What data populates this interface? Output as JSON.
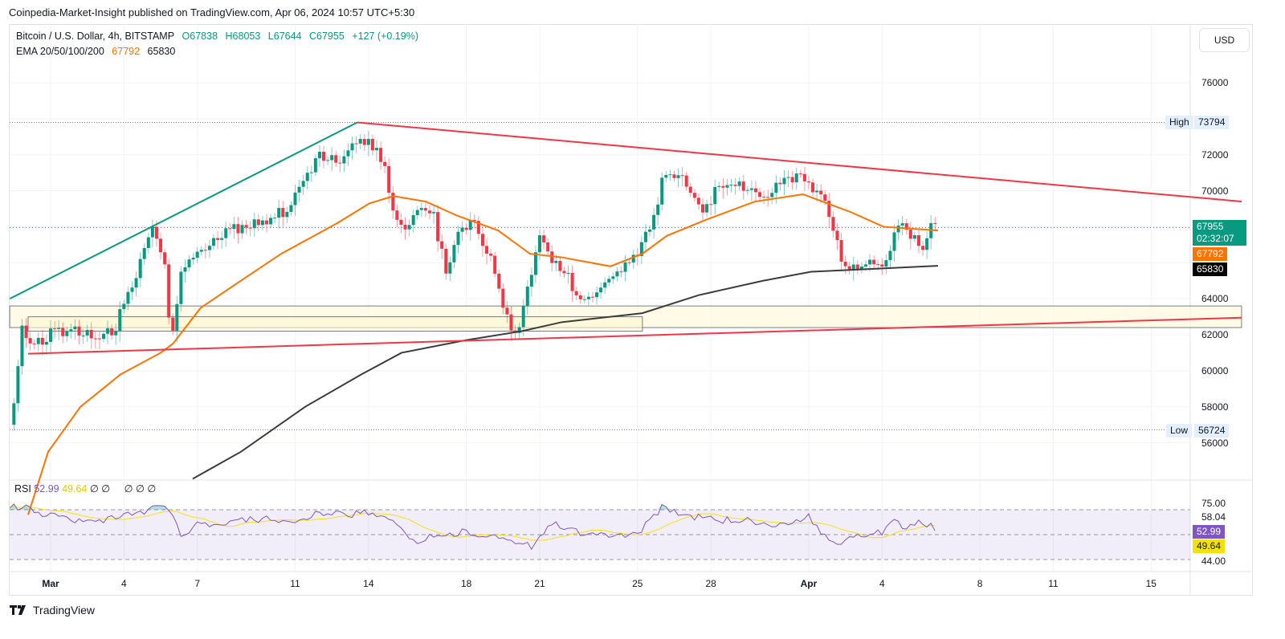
{
  "publisher_line": "Coinpedia-Market-Insight published on TradingView.com, Apr 06, 2024 10:57 UTC+5:30",
  "legend": {
    "symbol": "Bitcoin / U.S. Dollar, 4h, BITSTAMP",
    "open": "O67838",
    "high": "H68053",
    "low": "L67644",
    "close": "C67955",
    "change": "+127 (+0.19%)",
    "ema_label": "EMA 20/50/100/200",
    "ema_val1": "67792",
    "ema_val2": "65830"
  },
  "currency": "USD",
  "price_axis": [
    "76000",
    "72000",
    "70000",
    "64000",
    "62000",
    "60000",
    "58000",
    "56000"
  ],
  "high_label": {
    "label": "High",
    "value": "73794"
  },
  "low_label": {
    "label": "Low",
    "value": "56724"
  },
  "price_tags": {
    "last": "67955",
    "countdown": "02:32:07",
    "ema50": "67792",
    "ema200": "65830"
  },
  "rsi": {
    "label": "RSI",
    "value": "52.99",
    "ma": "49.64",
    "extras": [
      "∅",
      "∅",
      "∅",
      "∅",
      "∅"
    ],
    "axis": [
      "75.00",
      "58.04",
      "44.00"
    ]
  },
  "time_axis": [
    {
      "label": "Mar",
      "day": 0
    },
    {
      "label": "4",
      "day": 3
    },
    {
      "label": "7",
      "day": 6
    },
    {
      "label": "11",
      "day": 10
    },
    {
      "label": "14",
      "day": 13
    },
    {
      "label": "18",
      "day": 17
    },
    {
      "label": "21",
      "day": 20
    },
    {
      "label": "25",
      "day": 24
    },
    {
      "label": "28",
      "day": 27
    },
    {
      "label": "Apr",
      "day": 31
    },
    {
      "label": "4",
      "day": 34
    },
    {
      "label": "8",
      "day": 38
    },
    {
      "label": "11",
      "day": 41
    },
    {
      "label": "15",
      "day": 45
    }
  ],
  "brand": "TradingView",
  "colors": {
    "up": "#089981",
    "down": "#f23645",
    "ema50": "#ff7300",
    "ema200": "#3c3c3c",
    "rsi": "#7e57c2",
    "rsi_ma": "#f5e10a",
    "trend_up": "#089981",
    "trend": "#f23645",
    "zone": "#fff9d6"
  },
  "chart_data": {
    "type": "line",
    "title": "Bitcoin / U.S. Dollar, 4h, BITSTAMP",
    "x_unit": "days since Mar 1 2024",
    "ylim": [
      54000,
      77000
    ],
    "price_path": [
      [
        -1.67,
        57000
      ],
      [
        -1.41,
        59000
      ],
      [
        -1.15,
        62500
      ],
      [
        -0.76,
        61500
      ],
      [
        0,
        62000
      ],
      [
        1.22,
        62200
      ],
      [
        2.53,
        62000
      ],
      [
        3.09,
        64000
      ],
      [
        3.68,
        66000
      ],
      [
        4.17,
        68300
      ],
      [
        4.66,
        66000
      ],
      [
        4.93,
        61500
      ],
      [
        5.16,
        64000
      ],
      [
        5.42,
        66000
      ],
      [
        5.98,
        66500
      ],
      [
        6.8,
        67500
      ],
      [
        7.78,
        68000
      ],
      [
        8.77,
        68300
      ],
      [
        9.75,
        69000
      ],
      [
        10.41,
        70500
      ],
      [
        10.9,
        72000
      ],
      [
        11.72,
        71500
      ],
      [
        12.38,
        73000
      ],
      [
        13.04,
        72500
      ],
      [
        13.69,
        71500
      ],
      [
        14.02,
        68500
      ],
      [
        14.52,
        67500
      ],
      [
        15.01,
        69000
      ],
      [
        15.67,
        68500
      ],
      [
        16.16,
        65500
      ],
      [
        16.65,
        67500
      ],
      [
        17.31,
        68200
      ],
      [
        17.96,
        66500
      ],
      [
        18.62,
        63000
      ],
      [
        19.11,
        62000
      ],
      [
        19.44,
        64000
      ],
      [
        19.93,
        67500
      ],
      [
        20.59,
        66000
      ],
      [
        21.25,
        65000
      ],
      [
        21.58,
        64000
      ],
      [
        22.23,
        64000
      ],
      [
        22.89,
        65200
      ],
      [
        23.55,
        65800
      ],
      [
        24.2,
        67000
      ],
      [
        24.7,
        68500
      ],
      [
        25.02,
        71000
      ],
      [
        25.85,
        70500
      ],
      [
        26.67,
        69000
      ],
      [
        27.49,
        70500
      ],
      [
        28.14,
        70500
      ],
      [
        28.8,
        69600
      ],
      [
        29.79,
        70200
      ],
      [
        30.77,
        71000
      ],
      [
        31.1,
        70000
      ],
      [
        31.76,
        69300
      ],
      [
        32.25,
        66500
      ],
      [
        32.74,
        65500
      ],
      [
        33.4,
        66000
      ],
      [
        34.06,
        66000
      ],
      [
        34.71,
        68000
      ],
      [
        35.37,
        67500
      ],
      [
        35.7,
        66500
      ],
      [
        36.03,
        68000
      ],
      [
        36.29,
        67955
      ]
    ],
    "ema50": [
      [
        -0.92,
        52000
      ],
      [
        -0.1,
        55500
      ],
      [
        1.22,
        58000
      ],
      [
        2.86,
        59800
      ],
      [
        4.5,
        61000
      ],
      [
        5,
        61500
      ],
      [
        6.14,
        63500
      ],
      [
        7.78,
        65000
      ],
      [
        9.43,
        66500
      ],
      [
        11.72,
        68200
      ],
      [
        13.04,
        69300
      ],
      [
        14.02,
        69700
      ],
      [
        15.34,
        69400
      ],
      [
        16.65,
        68600
      ],
      [
        18.29,
        67800
      ],
      [
        19.6,
        66500
      ],
      [
        20.9,
        66300
      ],
      [
        22.89,
        65800
      ],
      [
        24.2,
        66500
      ],
      [
        25.2,
        67500
      ],
      [
        26.83,
        68400
      ],
      [
        28.8,
        69400
      ],
      [
        30.77,
        69800
      ],
      [
        31.76,
        69300
      ],
      [
        32.74,
        68800
      ],
      [
        34.06,
        68000
      ],
      [
        36.29,
        67792
      ]
    ],
    "ema200": [
      [
        5.81,
        54000
      ],
      [
        7.78,
        55500
      ],
      [
        10.41,
        58000
      ],
      [
        12.71,
        59800
      ],
      [
        14.35,
        61000
      ],
      [
        16.98,
        61700
      ],
      [
        19.27,
        62200
      ],
      [
        20.9,
        62700
      ],
      [
        24.2,
        63200
      ],
      [
        26.5,
        64200
      ],
      [
        29.13,
        65000
      ],
      [
        31.1,
        65500
      ],
      [
        36.29,
        65830
      ]
    ],
    "trendlines": [
      {
        "name": "rising-support",
        "color": "#089981",
        "from": [
          -1.67,
          64000
        ],
        "to": [
          12.54,
          73794
        ]
      },
      {
        "name": "descending-resistance",
        "color": "#f23645",
        "from": [
          12.54,
          73794
        ],
        "to": [
          48.7,
          69400
        ]
      },
      {
        "name": "rising-support-lower",
        "color": "#f23645",
        "from": [
          -0.92,
          60950
        ],
        "to": [
          48.7,
          62950
        ]
      }
    ],
    "zones": [
      {
        "from_day": -1.67,
        "to_day": 48.7,
        "low": 62400,
        "high": 63600
      },
      {
        "from_day": -0.92,
        "to_day": 24.2,
        "low": 62200,
        "high": 63000
      }
    ],
    "rsi_path": [
      [
        -1.67,
        72
      ],
      [
        -1,
        72
      ],
      [
        0,
        65
      ],
      [
        1,
        62
      ],
      [
        2,
        60
      ],
      [
        3,
        66
      ],
      [
        4,
        70
      ],
      [
        4.7,
        75
      ],
      [
        5,
        68
      ],
      [
        5.3,
        48
      ],
      [
        6,
        60
      ],
      [
        7,
        58
      ],
      [
        8,
        62
      ],
      [
        9,
        62
      ],
      [
        10,
        60
      ],
      [
        11,
        68
      ],
      [
        12,
        66
      ],
      [
        13,
        68
      ],
      [
        13.5,
        66
      ],
      [
        14,
        62
      ],
      [
        14.5,
        50
      ],
      [
        15,
        45
      ],
      [
        16,
        50
      ],
      [
        17,
        52
      ],
      [
        18,
        48
      ],
      [
        19,
        44
      ],
      [
        19.7,
        40
      ],
      [
        20,
        48
      ],
      [
        20.5,
        60
      ],
      [
        21,
        55
      ],
      [
        22,
        50
      ],
      [
        23,
        48
      ],
      [
        24,
        52
      ],
      [
        24.5,
        60
      ],
      [
        25,
        72
      ],
      [
        25.5,
        68
      ],
      [
        26,
        66
      ],
      [
        27,
        62
      ],
      [
        28,
        62
      ],
      [
        29,
        60
      ],
      [
        30,
        58
      ],
      [
        31,
        64
      ],
      [
        31.2,
        60
      ],
      [
        31.7,
        48
      ],
      [
        32,
        42
      ],
      [
        32.5,
        45
      ],
      [
        33,
        48
      ],
      [
        34,
        52
      ],
      [
        34.5,
        62
      ],
      [
        35,
        55
      ],
      [
        35.5,
        62
      ],
      [
        36.29,
        52.99
      ]
    ],
    "rsi_levels": [
      70,
      50,
      30
    ]
  }
}
